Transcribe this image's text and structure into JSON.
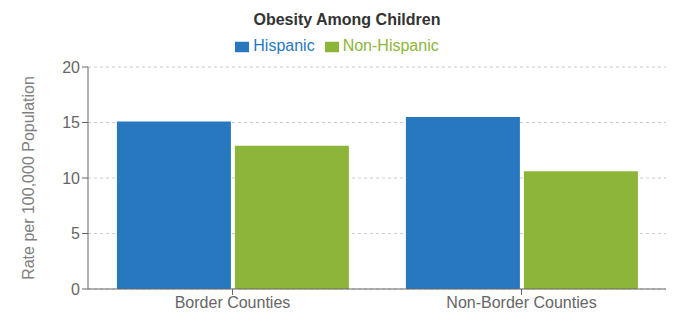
{
  "chart_data": {
    "type": "bar",
    "title": "Obesity Among Children",
    "ylabel": "Rate per 100,000 Population",
    "categories": [
      "Border Counties",
      "Non-Border Counties"
    ],
    "series": [
      {
        "name": "Hispanic",
        "color": "#2878c0",
        "values": [
          15.1,
          15.5
        ]
      },
      {
        "name": "Non-Hispanic",
        "color": "#8db53a",
        "values": [
          12.9,
          10.6
        ]
      }
    ],
    "ylim": [
      0,
      20
    ],
    "yticks": [
      0,
      5,
      10,
      15,
      20
    ],
    "grid": true,
    "legend": "top"
  }
}
